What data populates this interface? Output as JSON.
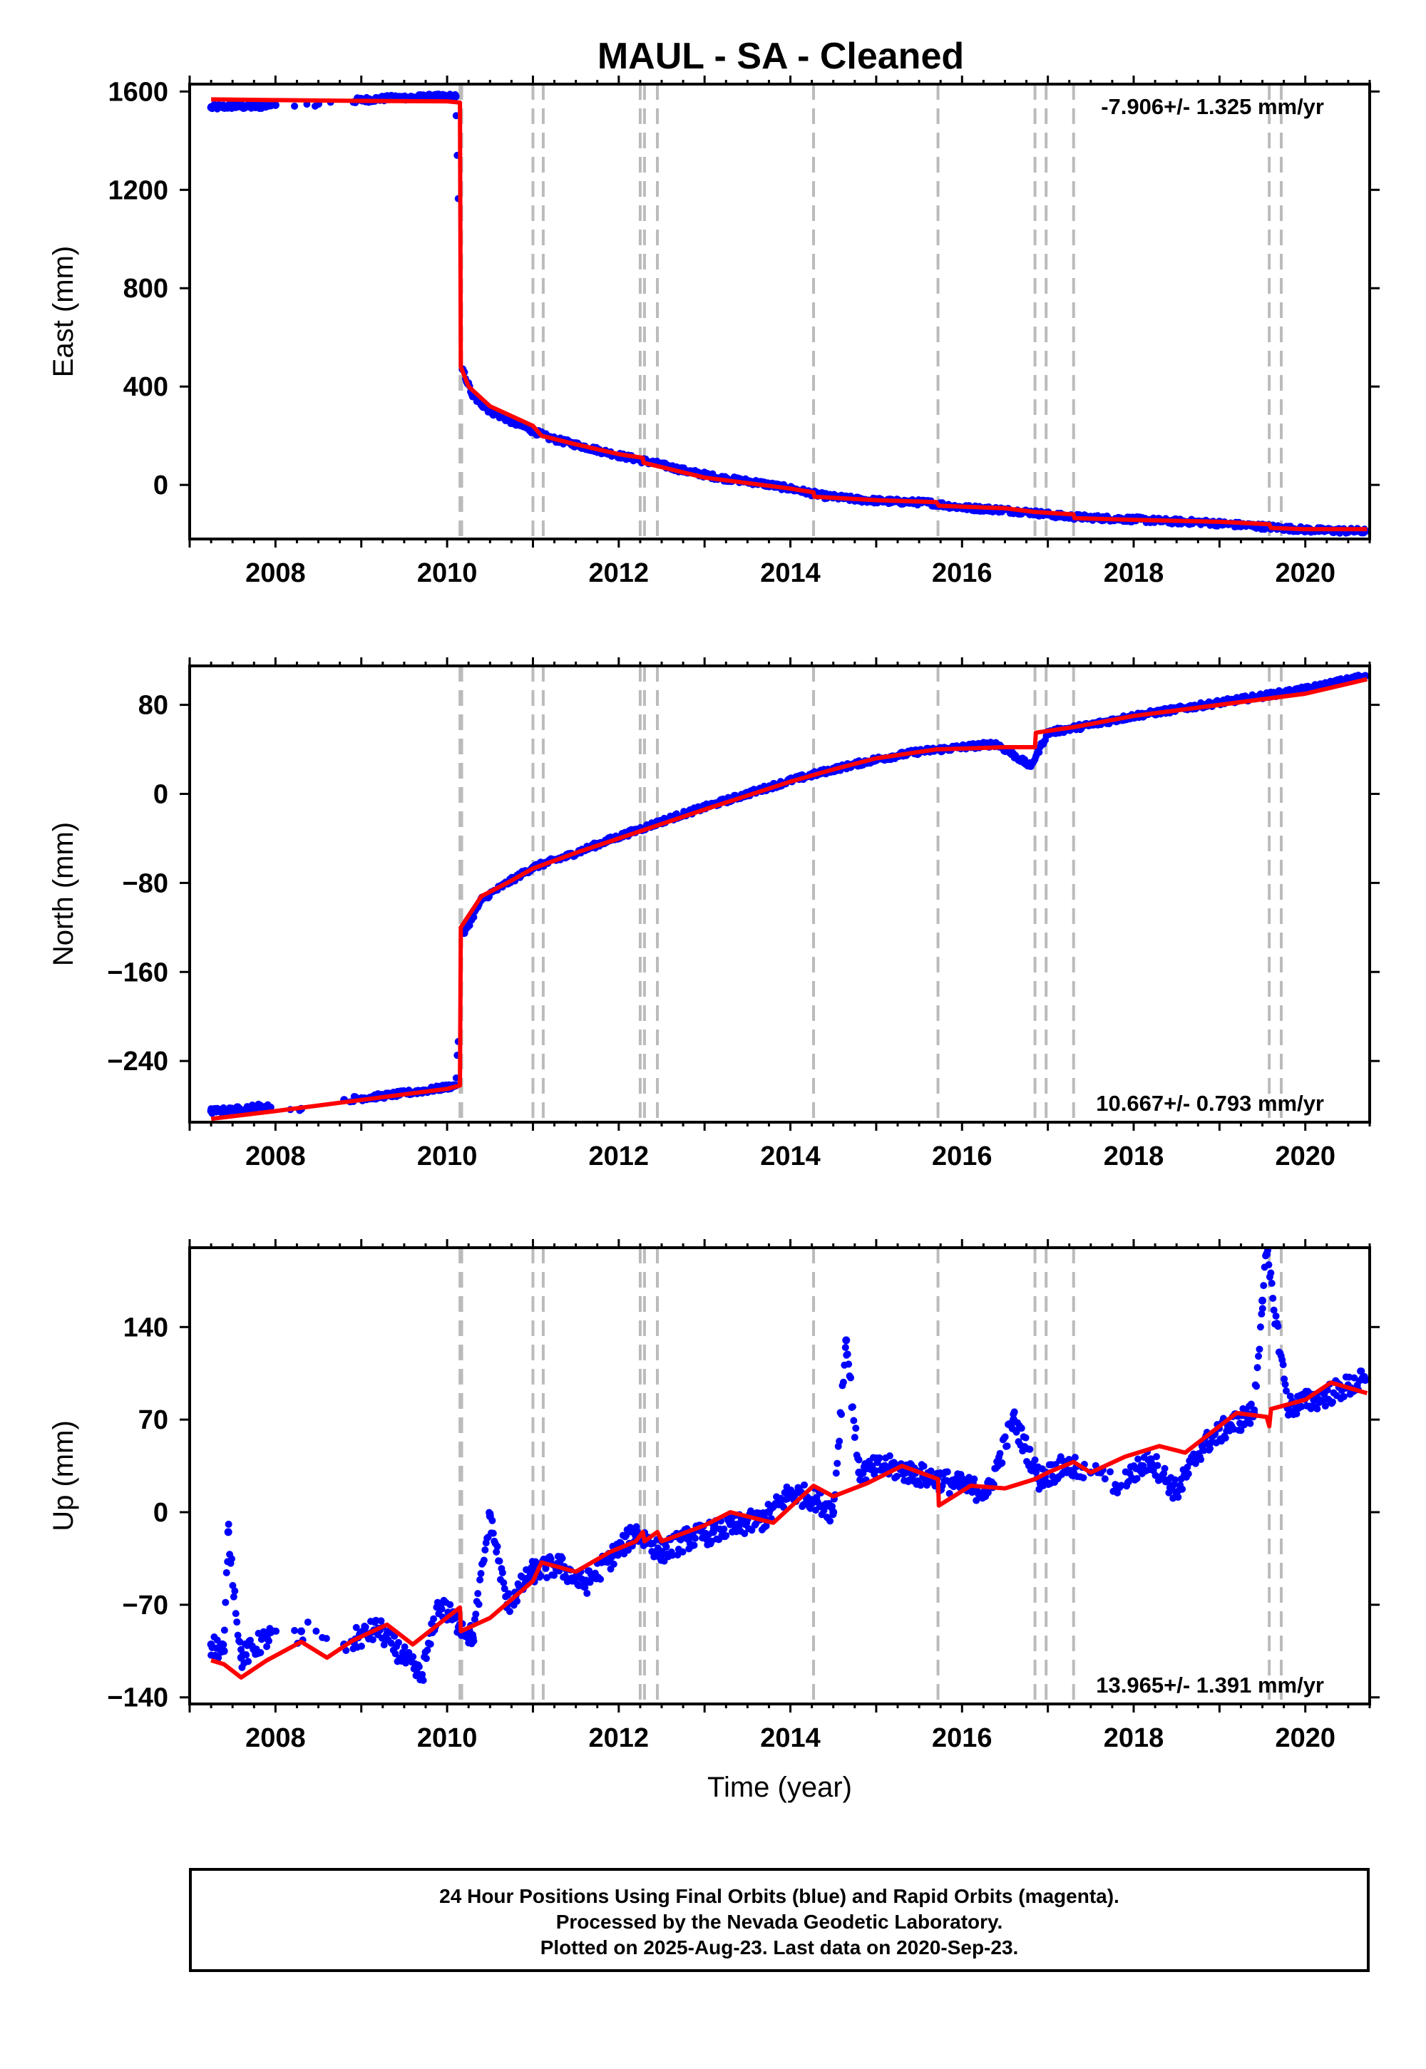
{
  "title": "MAUL  - SA - Cleaned",
  "footer": {
    "line1": "24 Hour Positions Using Final Orbits (blue) and Rapid Orbits (magenta).",
    "line2": "Processed by the Nevada Geodetic Laboratory.",
    "line3": "Plotted on 2025-Aug-23. Last data on 2020-Sep-23."
  },
  "colors": {
    "data": "#0000ff",
    "model": "#ff0000",
    "event_lines": "#bbbbbb"
  },
  "chart_data": [
    {
      "type": "scatter",
      "panel": "east",
      "ylabel": "East (mm)",
      "xlabel": "",
      "xlim": [
        2007.0,
        2020.75
      ],
      "ylim": [
        -220,
        1630
      ],
      "xticks": [
        2008,
        2010,
        2012,
        2014,
        2016,
        2018,
        2020
      ],
      "yticks": [
        0,
        400,
        800,
        1200,
        1600
      ],
      "annotation": "-7.906+/- 1.325 mm/yr",
      "annotation_position": "top-right",
      "event_lines": [
        2010.15,
        2010.17,
        2011.0,
        2011.12,
        2012.25,
        2012.3,
        2012.45,
        2014.27,
        2015.72,
        2016.85,
        2016.98,
        2017.3,
        2019.58,
        2019.72
      ],
      "model": {
        "x": [
          2007.25,
          2008.0,
          2009.0,
          2010.0,
          2010.15,
          2010.16,
          2010.25,
          2010.5,
          2011.0,
          2011.1,
          2011.5,
          2012.0,
          2012.28,
          2012.29,
          2013.0,
          2014.0,
          2014.27,
          2014.28,
          2015.0,
          2015.7,
          2015.73,
          2016.5,
          2016.85,
          2017.3,
          2017.31,
          2018.0,
          2019.0,
          2019.58,
          2019.6,
          2020.0,
          2020.72
        ],
        "y": [
          1568,
          1565,
          1562,
          1560,
          1555,
          480,
          400,
          320,
          240,
          200,
          165,
          125,
          110,
          90,
          30,
          -15,
          -30,
          -48,
          -62,
          -70,
          -85,
          -95,
          -110,
          -120,
          -135,
          -142,
          -150,
          -160,
          -175,
          -180,
          -180
        ]
      },
      "series": [
        {
          "x": [
            2007.25,
            2007.5,
            2007.75,
            2008.0,
            2008.5,
            2009.0,
            2009.4,
            2009.8,
            2010.1,
            2010.18,
            2010.3,
            2010.5,
            2010.8,
            2011.2,
            2011.6,
            2012.0,
            2012.4,
            2012.8,
            2013.2,
            2013.6,
            2014.0,
            2014.4,
            2014.8,
            2015.2,
            2015.6,
            2016.0,
            2016.4,
            2016.8,
            2017.2,
            2017.6,
            2018.0,
            2018.4,
            2018.8,
            2019.2,
            2019.6,
            2020.0,
            2020.2,
            2020.7
          ],
          "y": [
            1535,
            1540,
            1538,
            1545,
            1550,
            1565,
            1575,
            1578,
            1580,
            470,
            360,
            300,
            250,
            190,
            155,
            120,
            90,
            55,
            28,
            10,
            -15,
            -45,
            -60,
            -68,
            -72,
            -92,
            -100,
            -112,
            -128,
            -135,
            -140,
            -148,
            -152,
            -162,
            -172,
            -182,
            -185,
            -188
          ]
        }
      ]
    },
    {
      "type": "scatter",
      "panel": "north",
      "ylabel": "North (mm)",
      "xlabel": "",
      "xlim": [
        2007.0,
        2020.75
      ],
      "ylim": [
        -295,
        115
      ],
      "xticks": [
        2008,
        2010,
        2012,
        2014,
        2016,
        2018,
        2020
      ],
      "yticks": [
        -240,
        -160,
        -80,
        0,
        80
      ],
      "annotation": "10.667+/- 0.793 mm/yr",
      "annotation_position": "bottom-right",
      "event_lines": [
        2010.15,
        2010.17,
        2011.0,
        2011.12,
        2012.25,
        2012.3,
        2012.45,
        2014.27,
        2015.72,
        2016.85,
        2016.98,
        2017.3,
        2019.58,
        2019.72
      ],
      "model": {
        "x": [
          2007.25,
          2008.0,
          2009.0,
          2010.0,
          2010.15,
          2010.16,
          2010.4,
          2010.7,
          2011.0,
          2011.5,
          2012.0,
          2012.5,
          2013.0,
          2014.0,
          2014.5,
          2015.0,
          2015.7,
          2016.5,
          2016.85,
          2016.86,
          2017.3,
          2018.0,
          2019.0,
          2020.0,
          2020.72
        ],
        "y": [
          -292,
          -285,
          -275,
          -265,
          -262,
          -120,
          -92,
          -80,
          -67,
          -53,
          -40,
          -27,
          -14,
          11,
          22,
          32,
          40,
          42,
          42,
          55,
          60,
          70,
          80,
          90,
          103
        ]
      },
      "series": [
        {
          "x": [
            2007.25,
            2007.5,
            2007.8,
            2008.3,
            2008.8,
            2009.3,
            2009.8,
            2010.1,
            2010.2,
            2010.4,
            2010.7,
            2011.0,
            2011.4,
            2011.8,
            2012.2,
            2012.6,
            2013.0,
            2013.5,
            2014.0,
            2014.5,
            2015.0,
            2015.5,
            2016.0,
            2016.4,
            2016.8,
            2017.0,
            2017.5,
            2018.0,
            2018.5,
            2019.0,
            2019.5,
            2020.0,
            2020.7
          ],
          "y": [
            -285,
            -284,
            -281,
            -283,
            -275,
            -271,
            -266,
            -262,
            -125,
            -95,
            -80,
            -66,
            -56,
            -44,
            -33,
            -22,
            -12,
            0,
            12,
            22,
            31,
            38,
            42,
            45,
            25,
            55,
            62,
            70,
            76,
            82,
            88,
            94,
            106
          ]
        }
      ]
    },
    {
      "type": "scatter",
      "panel": "up",
      "ylabel": "Up (mm)",
      "xlabel": "Time (year)",
      "xlim": [
        2007.0,
        2020.75
      ],
      "ylim": [
        -145,
        200
      ],
      "xticks": [
        2008,
        2010,
        2012,
        2014,
        2016,
        2018,
        2020
      ],
      "yticks": [
        -140,
        -70,
        0,
        70,
        140
      ],
      "annotation": "13.965+/- 1.391 mm/yr",
      "annotation_position": "bottom-right",
      "event_lines": [
        2010.15,
        2010.17,
        2011.0,
        2011.12,
        2012.25,
        2012.3,
        2012.45,
        2014.27,
        2015.72,
        2016.85,
        2016.98,
        2017.3,
        2019.58,
        2019.72
      ],
      "model": {
        "x": [
          2007.25,
          2007.4,
          2007.6,
          2007.9,
          2008.3,
          2008.6,
          2008.9,
          2009.3,
          2009.6,
          2010.15,
          2010.16,
          2010.5,
          2011.0,
          2011.1,
          2011.5,
          2011.9,
          2012.2,
          2012.28,
          2012.3,
          2012.45,
          2012.5,
          2013.0,
          2013.3,
          2013.8,
          2014.27,
          2014.5,
          2014.9,
          2015.3,
          2015.72,
          2015.73,
          2016.1,
          2016.5,
          2016.85,
          2017.0,
          2017.3,
          2017.5,
          2017.9,
          2018.3,
          2018.6,
          2019.0,
          2019.2,
          2019.55,
          2019.58,
          2019.6,
          2020.0,
          2020.3,
          2020.72
        ],
        "y": [
          -112,
          -115,
          -125,
          -112,
          -98,
          -110,
          -97,
          -85,
          -100,
          -72,
          -90,
          -80,
          -52,
          -38,
          -45,
          -30,
          -22,
          -15,
          -22,
          -15,
          -22,
          -10,
          0,
          -8,
          20,
          12,
          22,
          35,
          25,
          5,
          20,
          18,
          25,
          30,
          38,
          30,
          42,
          50,
          45,
          65,
          75,
          72,
          65,
          78,
          85,
          98,
          90
        ]
      },
      "series": [
        {
          "x": [
            2007.25,
            2007.4,
            2007.45,
            2007.6,
            2007.9,
            2008.3,
            2008.8,
            2009.2,
            2009.5,
            2009.7,
            2009.9,
            2010.15,
            2010.3,
            2010.5,
            2010.7,
            2011.0,
            2011.3,
            2011.6,
            2011.9,
            2012.2,
            2012.5,
            2012.8,
            2013.1,
            2013.4,
            2013.7,
            2014.0,
            2014.3,
            2014.5,
            2014.65,
            2014.8,
            2015.1,
            2015.4,
            2016.0,
            2016.3,
            2016.6,
            2016.9,
            2017.2,
            2017.5,
            2017.8,
            2018.2,
            2018.5,
            2018.8,
            2019.1,
            2019.4,
            2019.5,
            2019.55,
            2019.8,
            2020.1,
            2020.7
          ],
          "y": [
            -100,
            -105,
            -15,
            -110,
            -95,
            -90,
            -100,
            -88,
            -110,
            -125,
            -70,
            -85,
            -95,
            -3,
            -70,
            -45,
            -40,
            -55,
            -35,
            -15,
            -30,
            -20,
            -15,
            -10,
            -5,
            15,
            10,
            0,
            130,
            30,
            35,
            30,
            20,
            15,
            70,
            25,
            35,
            30,
            20,
            40,
            15,
            50,
            65,
            75,
            160,
            195,
            80,
            85,
            100
          ]
        }
      ]
    }
  ]
}
